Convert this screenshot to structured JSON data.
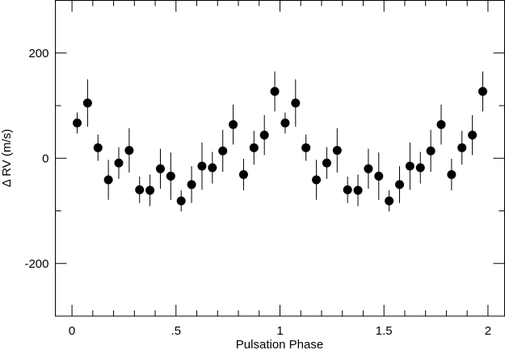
{
  "chart_data": {
    "type": "scatter",
    "xlabel": "Pulsation Phase",
    "ylabel": "Δ RV  (m/s)",
    "x": [
      0.025,
      0.075,
      0.125,
      0.175,
      0.225,
      0.275,
      0.325,
      0.375,
      0.425,
      0.475,
      0.525,
      0.575,
      0.625,
      0.675,
      0.725,
      0.775,
      0.825,
      0.875,
      0.925,
      0.975,
      1.025,
      1.075,
      1.125,
      1.175,
      1.225,
      1.275,
      1.325,
      1.375,
      1.425,
      1.475,
      1.525,
      1.575,
      1.625,
      1.675,
      1.725,
      1.775,
      1.825,
      1.875,
      1.925,
      1.975
    ],
    "values": [
      67,
      105,
      20,
      -41,
      -9,
      15,
      -60,
      -61,
      -20,
      -34,
      -81,
      -50,
      -15,
      -18,
      14,
      64,
      -31,
      20,
      44,
      127,
      67,
      105,
      20,
      -41,
      -9,
      15,
      -60,
      -61,
      -20,
      -34,
      -81,
      -50,
      -15,
      -18,
      14,
      64,
      -31,
      20,
      44,
      127
    ],
    "errors": [
      20,
      45,
      25,
      38,
      30,
      42,
      25,
      30,
      38,
      45,
      20,
      35,
      45,
      30,
      40,
      38,
      30,
      32,
      38,
      38,
      20,
      45,
      25,
      38,
      30,
      42,
      25,
      30,
      38,
      45,
      20,
      35,
      45,
      30,
      40,
      38,
      30,
      32,
      38,
      38
    ],
    "color": "#000000",
    "xlim": [
      -0.08,
      2.08
    ],
    "ylim": [
      -300,
      300
    ],
    "xticks": [
      0,
      {
        "value": 0.5,
        "label": ".5"
      },
      1,
      1.5,
      2
    ],
    "yticks": [
      -200,
      0,
      200
    ],
    "xminorticks": [
      0.1,
      0.2,
      0.3,
      0.4,
      0.6,
      0.7,
      0.8,
      0.9,
      1.1,
      1.2,
      1.3,
      1.4,
      1.6,
      1.7,
      1.8,
      1.9
    ],
    "yminorticks": [
      -300,
      -100,
      100,
      300
    ]
  }
}
